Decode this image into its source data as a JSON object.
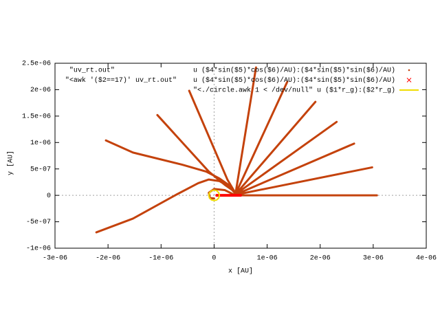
{
  "chart_data": {
    "type": "line",
    "xlabel": "x [AU]",
    "ylabel": "y [AU]",
    "xlim": [
      -3e-06,
      4e-06
    ],
    "ylim": [
      -1e-06,
      2.5e-06
    ],
    "xticks": [
      {
        "value": -3e-06,
        "label": "-3e-06"
      },
      {
        "value": -2e-06,
        "label": "-2e-06"
      },
      {
        "value": -1e-06,
        "label": "-1e-06"
      },
      0,
      {
        "value": 1e-06,
        "label": "1e-06"
      },
      {
        "value": 2e-06,
        "label": "2e-06"
      },
      {
        "value": 3e-06,
        "label": "3e-06"
      },
      {
        "value": 4e-06,
        "label": "4e-06"
      }
    ],
    "yticks": [
      {
        "value": -1e-06,
        "label": "-1e-06"
      },
      {
        "value": -5e-07,
        "label": "-5e-07"
      },
      0,
      {
        "value": 5e-07,
        "label": "5e-07"
      },
      {
        "value": 1e-06,
        "label": "1e-06"
      },
      {
        "value": 1.5e-06,
        "label": "1.5e-06"
      },
      {
        "value": 2e-06,
        "label": "2e-06"
      },
      {
        "value": 2.5e-06,
        "label": "2.5e-06"
      }
    ],
    "zero_axes": true,
    "series": [
      {
        "name": "\"uv_rt.out\"                   u ($4*sin($5)*cos($6)/AU):($4*sin($5)*sin($6)/AU)",
        "color": "#c4420c",
        "style": "dot",
        "x": [
          4.5e-07,
          3.07e-06,
          null,
          4.5e-07,
          2.98e-06,
          null,
          4.4e-07,
          2.64e-06,
          null,
          4.3e-07,
          2.31e-06,
          null,
          4.3e-07,
          1.91e-06,
          null,
          4.2e-07,
          1.38e-06,
          null,
          4.1e-07,
          7.9e-07,
          null,
          3.8e-07,
          2.5e-07,
          -4.7e-07,
          null,
          4e-07,
          2e-07,
          -1e-07,
          -1.07e-06,
          null,
          4.2e-07,
          3e-07,
          1e-07,
          -1.5e-07,
          -6e-07,
          -1.53e-06,
          -2.04e-06,
          null,
          4.2e-07,
          3e-07,
          1e-07,
          -1e-07,
          -3e-07,
          -7e-07,
          -1.53e-06,
          -2.22e-06,
          null,
          4e-07,
          2e-07,
          0,
          -1e-07,
          -8e-08,
          0
        ],
        "values": [
          0,
          0,
          null,
          2e-08,
          5.3e-07,
          null,
          3e-08,
          9.8e-07,
          null,
          4e-08,
          1.39e-06,
          null,
          5e-08,
          1.77e-06,
          null,
          6e-08,
          2.15e-06,
          null,
          7e-08,
          2.42e-06,
          null,
          8e-08,
          3e-07,
          1.98e-06,
          null,
          6e-08,
          2e-07,
          4.5e-07,
          1.52e-06,
          null,
          3e-08,
          1.8e-07,
          3.2e-07,
          4.5e-07,
          5.8e-07,
          8.1e-07,
          1.04e-06,
          null,
          1e-08,
          1.5e-07,
          2.7e-07,
          3e-07,
          2.3e-07,
          2e-08,
          -4.4e-07,
          -7e-07,
          null,
          0,
          1e-07,
          1.2e-07,
          5e-08,
          -5e-08,
          -6e-08
        ]
      },
      {
        "name": "\"<awk '($2==17)' uv_rt.out\"    u ($4*sin($5)*cos($6)/AU):($4*sin($5)*sin($6)/AU)",
        "color": "#ff0000",
        "style": "cross",
        "x": [
          5e-08,
          5e-07
        ],
        "values": [
          0,
          0
        ]
      },
      {
        "name": "\"<./circle.awk 1 < /dev/null\" u ($1*r_g):($2*r_g)",
        "color": "#f0dc00",
        "style": "line",
        "x": [
          1e-07,
          8.7e-08,
          5e-08,
          0,
          -5e-08,
          -8.7e-08,
          -1e-07,
          -8.7e-08,
          -5e-08,
          0,
          5e-08,
          8.7e-08,
          1e-07
        ],
        "values": [
          0,
          5e-08,
          8.7e-08,
          1e-07,
          8.7e-08,
          5e-08,
          0,
          -5e-08,
          -8.7e-08,
          -1e-07,
          -8.7e-08,
          -5e-08,
          0
        ]
      }
    ]
  }
}
